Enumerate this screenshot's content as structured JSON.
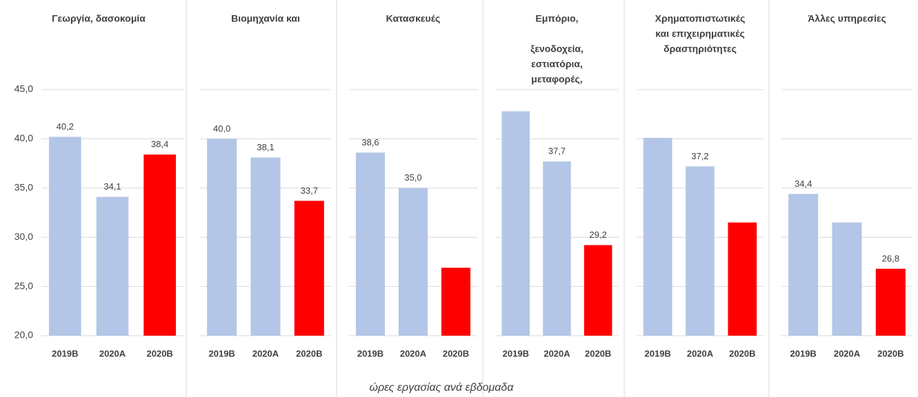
{
  "chart_data": [
    {
      "type": "bar",
      "title": [
        "Γεωργία, δασοκομία"
      ],
      "categories": [
        "2019B",
        "2020A",
        "2020B"
      ],
      "values": [
        40.2,
        34.1,
        38.4
      ],
      "value_labels": [
        "40,2",
        "34,1",
        "38,4"
      ],
      "colors": [
        "#b4c6e7",
        "#b4c6e7",
        "#ff0000"
      ],
      "ylim": [
        20,
        46
      ],
      "yticks": [
        {
          "value": 20,
          "label": "20,0"
        },
        {
          "value": 25,
          "label": "25,0"
        },
        {
          "value": 30,
          "label": "30,0"
        },
        {
          "value": 35,
          "label": "35,0"
        },
        {
          "value": 40,
          "label": "40,0"
        },
        {
          "value": 45,
          "label": "45,0"
        }
      ],
      "grid": true
    },
    {
      "type": "bar",
      "title": [
        "Βιομηχανία και"
      ],
      "categories": [
        "2019B",
        "2020A",
        "2020B"
      ],
      "values": [
        40.0,
        38.1,
        33.7
      ],
      "value_labels": [
        "40,0",
        "38,1",
        "33,7"
      ],
      "colors": [
        "#b4c6e7",
        "#b4c6e7",
        "#ff0000"
      ],
      "ylim": [
        20,
        46
      ],
      "yticks": [
        20,
        25,
        30,
        35,
        40,
        45
      ],
      "grid": true
    },
    {
      "type": "bar",
      "title": [
        "Κατασκευές"
      ],
      "categories": [
        "2019B",
        "2020A",
        "2020B"
      ],
      "values": [
        38.6,
        35.0,
        26.9
      ],
      "value_labels": [
        "38,6",
        "35,0",
        null
      ],
      "colors": [
        "#b4c6e7",
        "#b4c6e7",
        "#ff0000"
      ],
      "ylim": [
        20,
        46
      ],
      "yticks": [
        20,
        25,
        30,
        35,
        40,
        45
      ],
      "grid": true
    },
    {
      "type": "bar",
      "title": [
        "Εμπόριο,",
        "",
        "ξενοδοχεία,",
        "εστιατόρια,",
        "μεταφορές,"
      ],
      "categories": [
        "2019B",
        "2020A",
        "2020B"
      ],
      "values": [
        42.8,
        37.7,
        29.2
      ],
      "value_labels": [
        null,
        "37,7",
        "29,2"
      ],
      "colors": [
        "#b4c6e7",
        "#b4c6e7",
        "#ff0000"
      ],
      "ylim": [
        20,
        46
      ],
      "yticks": [
        20,
        25,
        30,
        35,
        40,
        45
      ],
      "grid": true
    },
    {
      "type": "bar",
      "title": [
        "Χρηματοπιστωτικές",
        "και επιχειρηματικές",
        "δραστηριότητες"
      ],
      "categories": [
        "2019B",
        "2020A",
        "2020B"
      ],
      "values": [
        40.1,
        37.2,
        31.5
      ],
      "value_labels": [
        null,
        "37,2",
        null
      ],
      "colors": [
        "#b4c6e7",
        "#b4c6e7",
        "#ff0000"
      ],
      "ylim": [
        20,
        46
      ],
      "yticks": [
        20,
        25,
        30,
        35,
        40,
        45
      ],
      "grid": true
    },
    {
      "type": "bar",
      "title": [
        "Άλλες υπηρεσίες"
      ],
      "categories": [
        "2019B",
        "2020A",
        "2020B"
      ],
      "values": [
        34.4,
        31.5,
        26.8
      ],
      "value_labels": [
        "34,4",
        null,
        "26,8"
      ],
      "colors": [
        "#b4c6e7",
        "#b4c6e7",
        "#ff0000"
      ],
      "ylim": [
        20,
        46
      ],
      "yticks": [
        20,
        25,
        30,
        35,
        40,
        45
      ],
      "grid": true
    }
  ],
  "annotation": "ώρες  εργασίας ανά εβδομαδα"
}
